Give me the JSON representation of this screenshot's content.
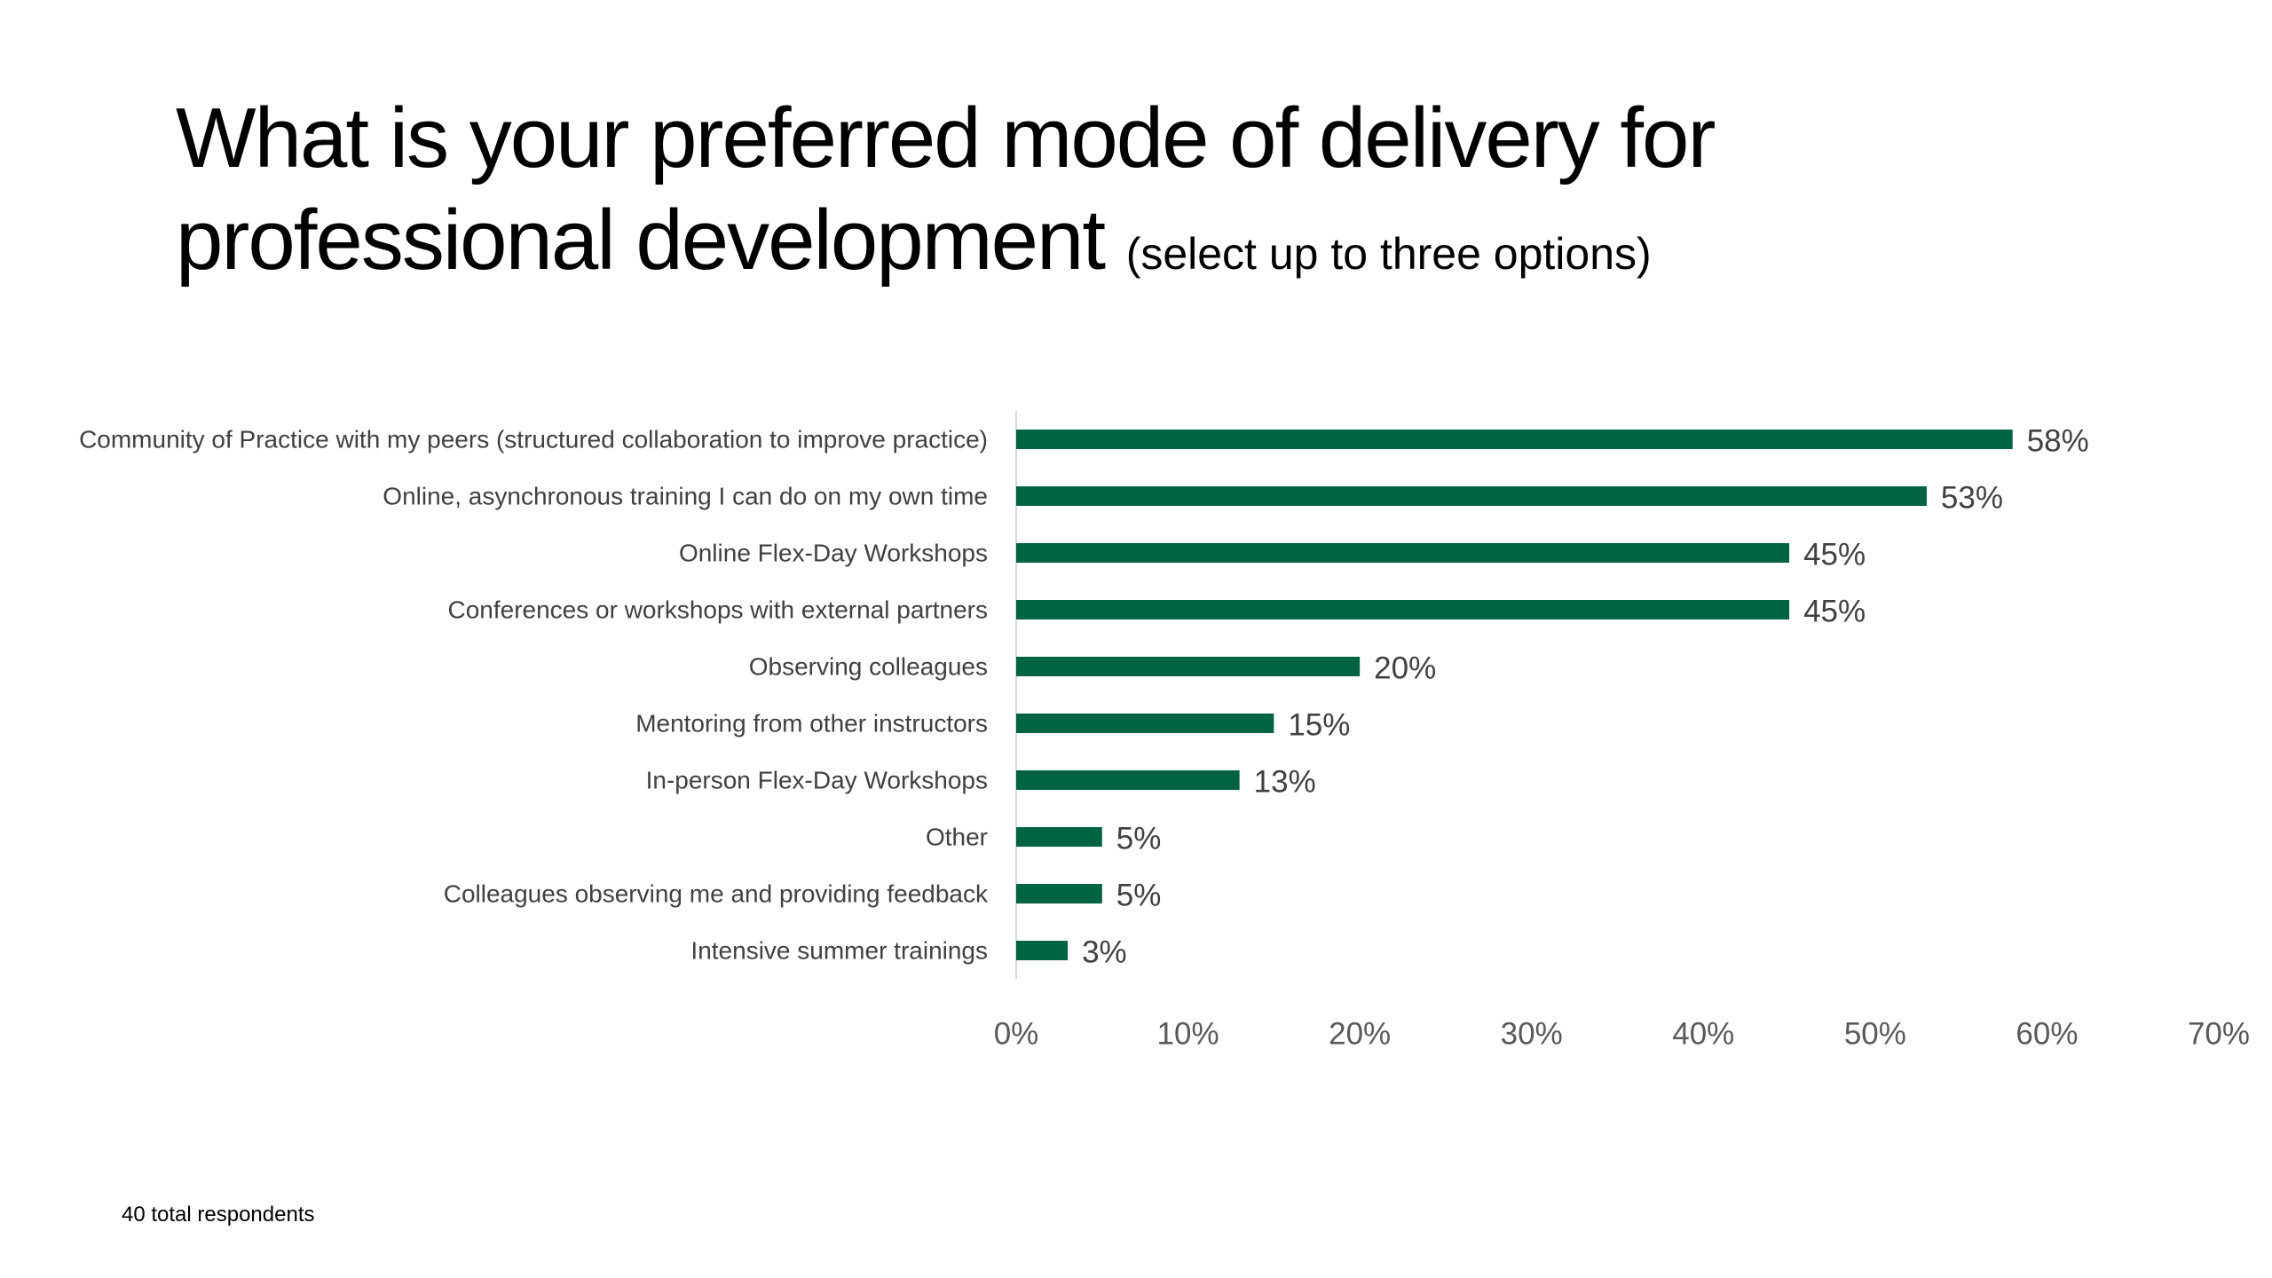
{
  "title": "What is your preferred mode of delivery for professional development",
  "subtitle": "(select up to three options)",
  "footnote": "40 total respondents",
  "colors": {
    "bar": "#006342",
    "category_text": "#404040",
    "value_text": "#404040",
    "tick_text": "#595959",
    "axis": "#d9d9d9"
  },
  "chart_data": {
    "type": "bar",
    "orientation": "horizontal",
    "categories": [
      "Community of Practice with my peers (structured collaboration to improve practice)",
      "Online, asynchronous training I can do on my own time",
      "Online Flex-Day Workshops",
      "Conferences or workshops with external partners",
      "Observing colleagues",
      "Mentoring from other instructors",
      "In-person Flex-Day Workshops",
      "Other",
      "Colleagues observing me and providing feedback",
      "Intensive summer trainings"
    ],
    "values": [
      58,
      53,
      45,
      45,
      20,
      15,
      13,
      5,
      5,
      3
    ],
    "data_labels": [
      "58%",
      "53%",
      "45%",
      "45%",
      "20%",
      "15%",
      "13%",
      "5%",
      "5%",
      "3%"
    ],
    "xlim": [
      0,
      70
    ],
    "x_ticks": [
      0,
      10,
      20,
      30,
      40,
      50,
      60,
      70
    ],
    "x_tick_labels": [
      "0%",
      "10%",
      "20%",
      "30%",
      "40%",
      "50%",
      "60%",
      "70%"
    ],
    "grid": false,
    "legend": "none"
  }
}
